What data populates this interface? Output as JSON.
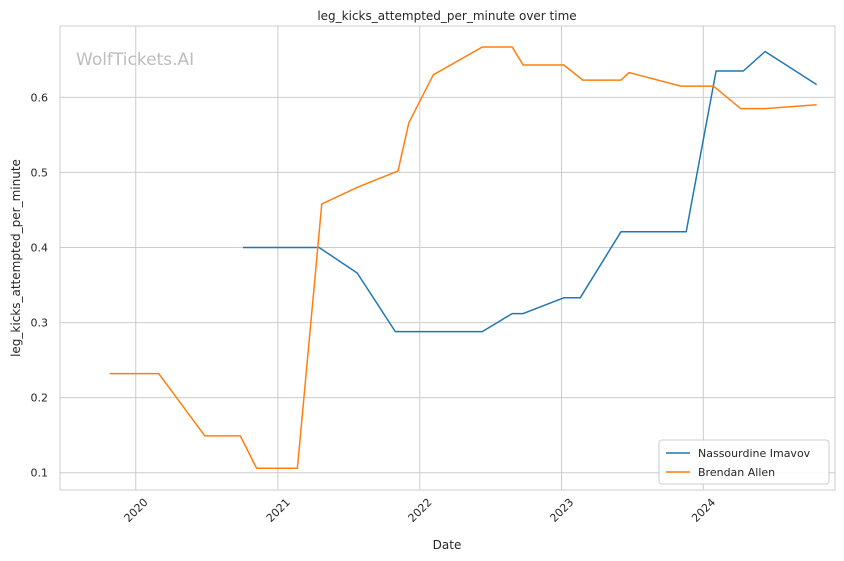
{
  "watermark": "WolfTickets.AI",
  "chart_data": {
    "type": "line",
    "title": "leg_kicks_attempted_per_minute over time",
    "xlabel": "Date",
    "ylabel": "leg_kicks_attempted_per_minute",
    "xlim": [
      "2019-06-20",
      "2024-12-05"
    ],
    "ylim": [
      0.077,
      0.695
    ],
    "x_ticks": [
      "2020-01-01",
      "2021-01-01",
      "2022-01-01",
      "2023-01-01",
      "2024-01-01"
    ],
    "x_tick_labels": [
      "2020",
      "2021",
      "2022",
      "2023",
      "2024"
    ],
    "y_ticks": [
      0.1,
      0.2,
      0.3,
      0.4,
      0.5,
      0.6
    ],
    "y_tick_labels": [
      "0.1",
      "0.2",
      "0.3",
      "0.4",
      "0.5",
      "0.6"
    ],
    "grid": true,
    "legend_position": "lower-right",
    "series": [
      {
        "name": "Nassourdine Imavov",
        "color": "#1f77b4",
        "points": [
          {
            "x": "2020-10-03",
            "y": 0.4
          },
          {
            "x": "2021-04-17",
            "y": 0.4
          },
          {
            "x": "2021-07-24",
            "y": 0.366
          },
          {
            "x": "2021-10-30",
            "y": 0.288
          },
          {
            "x": "2022-06-11",
            "y": 0.288
          },
          {
            "x": "2022-08-27",
            "y": 0.312
          },
          {
            "x": "2022-09-24",
            "y": 0.312
          },
          {
            "x": "2023-01-07",
            "y": 0.333
          },
          {
            "x": "2023-02-18",
            "y": 0.333
          },
          {
            "x": "2023-06-03",
            "y": 0.421
          },
          {
            "x": "2023-11-18",
            "y": 0.421
          },
          {
            "x": "2024-02-03",
            "y": 0.635
          },
          {
            "x": "2024-04-13",
            "y": 0.635
          },
          {
            "x": "2024-06-08",
            "y": 0.661
          },
          {
            "x": "2024-10-19",
            "y": 0.617
          }
        ]
      },
      {
        "name": "Brendan Allen",
        "color": "#ff7f0e",
        "points": [
          {
            "x": "2019-10-26",
            "y": 0.232
          },
          {
            "x": "2020-02-29",
            "y": 0.232
          },
          {
            "x": "2020-06-27",
            "y": 0.149
          },
          {
            "x": "2020-09-26",
            "y": 0.149
          },
          {
            "x": "2020-11-07",
            "y": 0.106
          },
          {
            "x": "2021-02-20",
            "y": 0.106
          },
          {
            "x": "2021-04-24",
            "y": 0.458
          },
          {
            "x": "2021-07-24",
            "y": 0.48
          },
          {
            "x": "2021-11-06",
            "y": 0.502
          },
          {
            "x": "2021-12-04",
            "y": 0.566
          },
          {
            "x": "2022-02-05",
            "y": 0.63
          },
          {
            "x": "2022-06-11",
            "y": 0.667
          },
          {
            "x": "2022-08-27",
            "y": 0.667
          },
          {
            "x": "2022-09-24",
            "y": 0.643
          },
          {
            "x": "2023-01-07",
            "y": 0.643
          },
          {
            "x": "2023-02-25",
            "y": 0.623
          },
          {
            "x": "2023-06-03",
            "y": 0.623
          },
          {
            "x": "2023-06-24",
            "y": 0.633
          },
          {
            "x": "2023-11-04",
            "y": 0.615
          },
          {
            "x": "2024-01-27",
            "y": 0.615
          },
          {
            "x": "2024-04-06",
            "y": 0.585
          },
          {
            "x": "2024-06-08",
            "y": 0.585
          },
          {
            "x": "2024-10-19",
            "y": 0.59
          }
        ]
      }
    ]
  }
}
